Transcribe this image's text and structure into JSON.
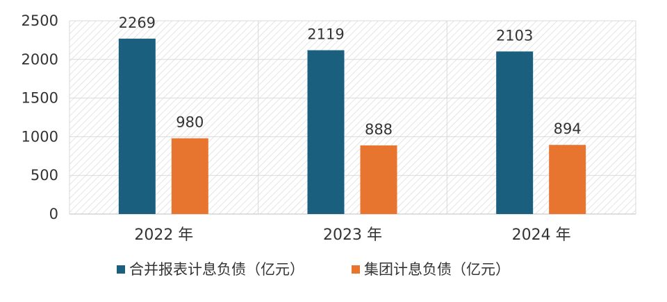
{
  "chart_data": {
    "type": "bar",
    "categories": [
      "2022 年",
      "2023 年",
      "2024 年"
    ],
    "series": [
      {
        "name": "合并报表计息负债（亿元）",
        "values": [
          2269,
          2119,
          2103
        ],
        "color": "#1b5f7f"
      },
      {
        "name": "集团计息负债（亿元）",
        "values": [
          980,
          888,
          894
        ],
        "color": "#e8752f"
      }
    ],
    "ylim": [
      0,
      2500
    ],
    "yticks": [
      0,
      500,
      1000,
      1500,
      2000,
      2500
    ],
    "grid": true,
    "plot_background": "hatched",
    "legend_position": "bottom",
    "title": "",
    "xlabel": "",
    "ylabel": ""
  }
}
